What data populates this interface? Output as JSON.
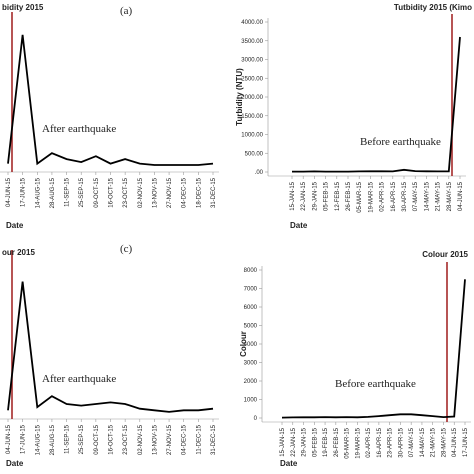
{
  "chart_data": [
    {
      "type": "line",
      "title": "bidity 2015",
      "panel_label": "(a)",
      "annotation": "After earthquake",
      "x_label": "Date",
      "color": "#000000",
      "categories": [
        "04-JUN-15",
        "17-JUN-15",
        "14-AUG-15",
        "28-AUG-15",
        "11-SEP-15",
        "25-SEP-15",
        "09-OCT-15",
        "16-OCT-15",
        "23-OCT-15",
        "02-NOV-15",
        "13-NOV-15",
        "27-NOV-15",
        "04-DEC-15",
        "18-DEC-15",
        "31-DEC-15"
      ],
      "values": [
        3,
        90,
        3,
        10,
        6,
        4,
        8,
        3,
        6,
        3,
        2,
        2,
        2,
        2,
        3
      ],
      "ylim": [
        0,
        100
      ]
    },
    {
      "type": "line",
      "title": "Tutbidity 2015 (Kimo",
      "annotation": "Before earthquake",
      "x_label": "Date",
      "y_label": "Turbidity (NTU)",
      "color": "#000000",
      "categories": [
        "15-JAN-15",
        "22-JAN-15",
        "29-JAN-15",
        "05-FEB-15",
        "12-FEB-15",
        "26-FEB-15",
        "05-MAR-15",
        "19-MAR-15",
        "02-APR-15",
        "16-APR-15",
        "30-APR-15",
        "07-MAY-15",
        "14-MAY-15",
        "21-MAY-15",
        "28-MAY-15",
        "04-JUN-15"
      ],
      "values": [
        10,
        12,
        15,
        10,
        12,
        10,
        15,
        20,
        20,
        15,
        60,
        25,
        20,
        15,
        20,
        3600
      ],
      "ylim": [
        0,
        4000
      ],
      "yticks": [
        {
          "value": 0,
          "label": ".00"
        },
        {
          "value": 500,
          "label": "500.00"
        },
        {
          "value": 1000,
          "label": "1000.00"
        },
        {
          "value": 1500,
          "label": "1500.00"
        },
        {
          "value": 2000,
          "label": "2000.00"
        },
        {
          "value": 2500,
          "label": "2500.00"
        },
        {
          "value": 3000,
          "label": "3000.00"
        },
        {
          "value": 3500,
          "label": "3500.00"
        },
        {
          "value": 4000,
          "label": "4000.00"
        }
      ]
    },
    {
      "type": "line",
      "title": "our 2015",
      "panel_label": "(c)",
      "annotation": "After earthquake",
      "x_label": "Date",
      "color": "#000000",
      "categories": [
        "04-JUN-15",
        "17-JUN-15",
        "14-AUG-15",
        "28-AUG-15",
        "11-SEP-15",
        "25-SEP-15",
        "09-OCT-15",
        "16-OCT-15",
        "23-OCT-15",
        "02-NOV-15",
        "13-NOV-15",
        "27-NOV-15",
        "04-DEC-15",
        "11-DEC-15",
        "31-DEC-15"
      ],
      "values": [
        3,
        85,
        5,
        12,
        7,
        6,
        7,
        8,
        7,
        4,
        3,
        2,
        3,
        3,
        4
      ],
      "ylim": [
        0,
        100
      ]
    },
    {
      "type": "line",
      "title": "Colour 2015",
      "annotation": "Before earthquake",
      "x_label": "Date",
      "y_label": "Colour",
      "color": "#000000",
      "categories": [
        "15-JAN-15",
        "22-JAN-15",
        "29-JAN-15",
        "05-FEB-15",
        "19-FEB-15",
        "26-FEB-15",
        "05-MAR-15",
        "19-MAR-15",
        "02-APR-15",
        "16-APR-15",
        "23-APR-15",
        "30-APR-15",
        "07-MAY-15",
        "14-MAY-15",
        "21-MAY-15",
        "28-MAY-15",
        "04-JUN-15",
        "17-JUN-15"
      ],
      "values": [
        20,
        30,
        40,
        40,
        50,
        40,
        50,
        40,
        60,
        100,
        150,
        200,
        200,
        150,
        100,
        50,
        80,
        7500
      ],
      "ylim": [
        0,
        8000
      ],
      "yticks": [
        0,
        1000,
        2000,
        3000,
        4000,
        5000,
        6000,
        7000,
        8000
      ]
    }
  ]
}
